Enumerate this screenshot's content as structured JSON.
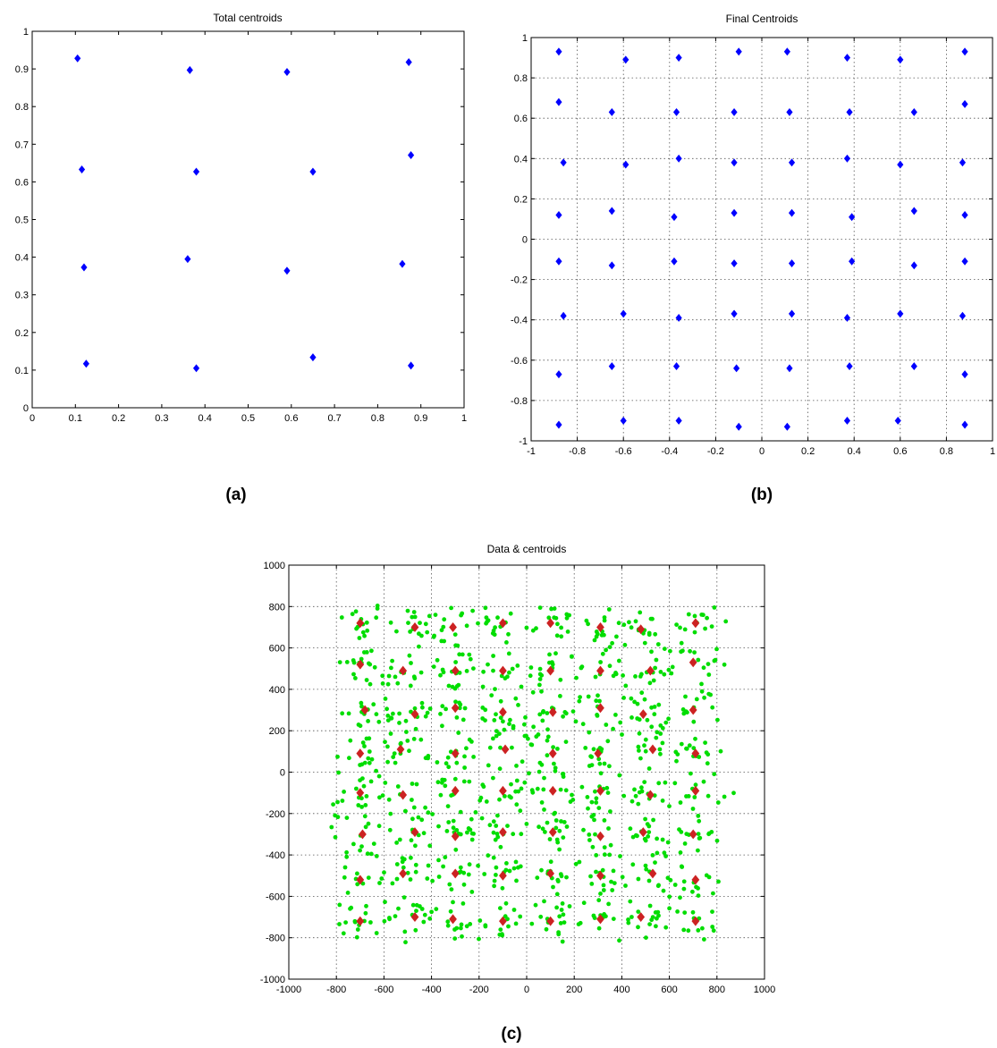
{
  "chart_data": [
    {
      "id": "a",
      "panel_label": "(a)",
      "type": "scatter",
      "title": "Total centroids",
      "xlabel": "",
      "ylabel": "",
      "xlim": [
        0,
        1
      ],
      "ylim": [
        0,
        1
      ],
      "xticks": [
        0,
        0.1,
        0.2,
        0.3,
        0.4,
        0.5,
        0.6,
        0.7,
        0.8,
        0.9,
        1
      ],
      "xtick_labels": [
        "0",
        "0.1",
        "0.2",
        "0.3",
        "0.4",
        "0.5",
        "0.6",
        "0.7",
        "0.8",
        "0.9",
        "1"
      ],
      "yticks": [
        0,
        0.1,
        0.2,
        0.3,
        0.4,
        0.5,
        0.6,
        0.7,
        0.8,
        0.9,
        1
      ],
      "ytick_labels": [
        "0",
        "0.1",
        "0.2",
        "0.3",
        "0.4",
        "0.5",
        "0.6",
        "0.7",
        "0.8",
        "0.9",
        "1"
      ],
      "grid": false,
      "series": [
        {
          "color": "#0000ff",
          "marker": "diamond",
          "points": [
            [
              0.105,
              0.928
            ],
            [
              0.365,
              0.897
            ],
            [
              0.59,
              0.892
            ],
            [
              0.872,
              0.918
            ],
            [
              0.115,
              0.633
            ],
            [
              0.38,
              0.627
            ],
            [
              0.65,
              0.627
            ],
            [
              0.877,
              0.671
            ],
            [
              0.12,
              0.373
            ],
            [
              0.36,
              0.395
            ],
            [
              0.59,
              0.364
            ],
            [
              0.857,
              0.382
            ],
            [
              0.125,
              0.117
            ],
            [
              0.38,
              0.105
            ],
            [
              0.65,
              0.134
            ],
            [
              0.877,
              0.112
            ]
          ]
        }
      ]
    },
    {
      "id": "b",
      "panel_label": "(b)",
      "type": "scatter",
      "title": "Final Centroids",
      "xlabel": "",
      "ylabel": "",
      "xlim": [
        -1,
        1
      ],
      "ylim": [
        -1,
        1
      ],
      "xticks": [
        -1,
        -0.8,
        -0.6,
        -0.4,
        -0.2,
        0,
        0.2,
        0.4,
        0.6,
        0.8,
        1
      ],
      "xtick_labels": [
        "-1",
        "-0.8",
        "-0.6",
        "-0.4",
        "-0.2",
        "0",
        "0.2",
        "0.4",
        "0.6",
        "0.8",
        "1"
      ],
      "yticks": [
        -1,
        -0.8,
        -0.6,
        -0.4,
        -0.2,
        0,
        0.2,
        0.4,
        0.6,
        0.8,
        1
      ],
      "ytick_labels": [
        "-1",
        "-0.8",
        "-0.6",
        "-0.4",
        "-0.2",
        "0",
        "0.2",
        "0.4",
        "0.6",
        "0.8",
        "1"
      ],
      "grid": true,
      "series": [
        {
          "color": "#0000ff",
          "marker": "diamond",
          "points": [
            [
              -0.88,
              0.93
            ],
            [
              -0.59,
              0.89
            ],
            [
              -0.36,
              0.9
            ],
            [
              -0.1,
              0.93
            ],
            [
              0.11,
              0.93
            ],
            [
              0.37,
              0.9
            ],
            [
              0.6,
              0.89
            ],
            [
              0.88,
              0.93
            ],
            [
              -0.88,
              0.68
            ],
            [
              -0.65,
              0.63
            ],
            [
              -0.37,
              0.63
            ],
            [
              -0.12,
              0.63
            ],
            [
              0.12,
              0.63
            ],
            [
              0.38,
              0.63
            ],
            [
              0.66,
              0.63
            ],
            [
              0.88,
              0.67
            ],
            [
              -0.86,
              0.38
            ],
            [
              -0.59,
              0.37
            ],
            [
              -0.36,
              0.4
            ],
            [
              -0.12,
              0.38
            ],
            [
              0.13,
              0.38
            ],
            [
              0.37,
              0.4
            ],
            [
              0.6,
              0.37
            ],
            [
              0.87,
              0.38
            ],
            [
              -0.88,
              0.12
            ],
            [
              -0.65,
              0.14
            ],
            [
              -0.38,
              0.11
            ],
            [
              -0.12,
              0.13
            ],
            [
              0.13,
              0.13
            ],
            [
              0.39,
              0.11
            ],
            [
              0.66,
              0.14
            ],
            [
              0.88,
              0.12
            ],
            [
              -0.88,
              -0.11
            ],
            [
              -0.65,
              -0.13
            ],
            [
              -0.38,
              -0.11
            ],
            [
              -0.12,
              -0.12
            ],
            [
              0.13,
              -0.12
            ],
            [
              0.39,
              -0.11
            ],
            [
              0.66,
              -0.13
            ],
            [
              0.88,
              -0.11
            ],
            [
              -0.86,
              -0.38
            ],
            [
              -0.6,
              -0.37
            ],
            [
              -0.36,
              -0.39
            ],
            [
              -0.12,
              -0.37
            ],
            [
              0.13,
              -0.37
            ],
            [
              0.37,
              -0.39
            ],
            [
              0.6,
              -0.37
            ],
            [
              0.87,
              -0.38
            ],
            [
              -0.88,
              -0.67
            ],
            [
              -0.65,
              -0.63
            ],
            [
              -0.37,
              -0.63
            ],
            [
              -0.11,
              -0.64
            ],
            [
              0.12,
              -0.64
            ],
            [
              0.38,
              -0.63
            ],
            [
              0.66,
              -0.63
            ],
            [
              0.88,
              -0.67
            ],
            [
              -0.88,
              -0.92
            ],
            [
              -0.6,
              -0.9
            ],
            [
              -0.36,
              -0.9
            ],
            [
              -0.1,
              -0.93
            ],
            [
              0.11,
              -0.93
            ],
            [
              0.37,
              -0.9
            ],
            [
              0.59,
              -0.9
            ],
            [
              0.88,
              -0.92
            ]
          ]
        }
      ]
    },
    {
      "id": "c",
      "panel_label": "(c)",
      "type": "scatter",
      "title": "Data & centroids",
      "xlabel": "",
      "ylabel": "",
      "xlim": [
        -1000,
        1000
      ],
      "ylim": [
        -1000,
        1000
      ],
      "xticks": [
        -1000,
        -800,
        -600,
        -400,
        -200,
        0,
        200,
        400,
        600,
        800,
        1000
      ],
      "xtick_labels": [
        "-1000",
        "-800",
        "-600",
        "-400",
        "-200",
        "0",
        "200",
        "400",
        "600",
        "800",
        "1000"
      ],
      "yticks": [
        -1000,
        -800,
        -600,
        -400,
        -200,
        0,
        200,
        400,
        600,
        800,
        1000
      ],
      "ytick_labels": [
        "-1000",
        "-800",
        "-600",
        "-400",
        "-200",
        "0",
        "200",
        "400",
        "600",
        "800",
        "1000"
      ],
      "grid": true,
      "data_points_color": "#00dd00",
      "data_points_note_count": 1000,
      "series": [
        {
          "color": "#cc2222",
          "marker": "diamond",
          "points": [
            [
              -700,
              720
            ],
            [
              -470,
              700
            ],
            [
              -310,
              700
            ],
            [
              -100,
              720
            ],
            [
              100,
              720
            ],
            [
              310,
              700
            ],
            [
              480,
              690
            ],
            [
              710,
              720
            ],
            [
              -700,
              520
            ],
            [
              -520,
              490
            ],
            [
              -300,
              490
            ],
            [
              -100,
              490
            ],
            [
              100,
              490
            ],
            [
              310,
              490
            ],
            [
              520,
              490
            ],
            [
              700,
              530
            ],
            [
              -680,
              300
            ],
            [
              -470,
              280
            ],
            [
              -300,
              310
            ],
            [
              -100,
              290
            ],
            [
              110,
              290
            ],
            [
              310,
              310
            ],
            [
              490,
              280
            ],
            [
              700,
              300
            ],
            [
              -700,
              90
            ],
            [
              -530,
              110
            ],
            [
              -300,
              90
            ],
            [
              -90,
              110
            ],
            [
              110,
              90
            ],
            [
              300,
              90
            ],
            [
              530,
              110
            ],
            [
              710,
              90
            ],
            [
              -700,
              -100
            ],
            [
              -520,
              -110
            ],
            [
              -300,
              -90
            ],
            [
              -100,
              -90
            ],
            [
              110,
              -90
            ],
            [
              310,
              -90
            ],
            [
              520,
              -110
            ],
            [
              710,
              -90
            ],
            [
              -690,
              -300
            ],
            [
              -470,
              -290
            ],
            [
              -300,
              -310
            ],
            [
              -100,
              -290
            ],
            [
              110,
              -290
            ],
            [
              310,
              -310
            ],
            [
              490,
              -290
            ],
            [
              700,
              -300
            ],
            [
              -700,
              -520
            ],
            [
              -520,
              -490
            ],
            [
              -300,
              -490
            ],
            [
              -100,
              -500
            ],
            [
              100,
              -490
            ],
            [
              310,
              -500
            ],
            [
              530,
              -490
            ],
            [
              710,
              -520
            ],
            [
              -700,
              -720
            ],
            [
              -470,
              -700
            ],
            [
              -310,
              -710
            ],
            [
              -100,
              -720
            ],
            [
              100,
              -720
            ],
            [
              310,
              -710
            ],
            [
              480,
              -700
            ],
            [
              710,
              -720
            ]
          ]
        }
      ]
    }
  ]
}
